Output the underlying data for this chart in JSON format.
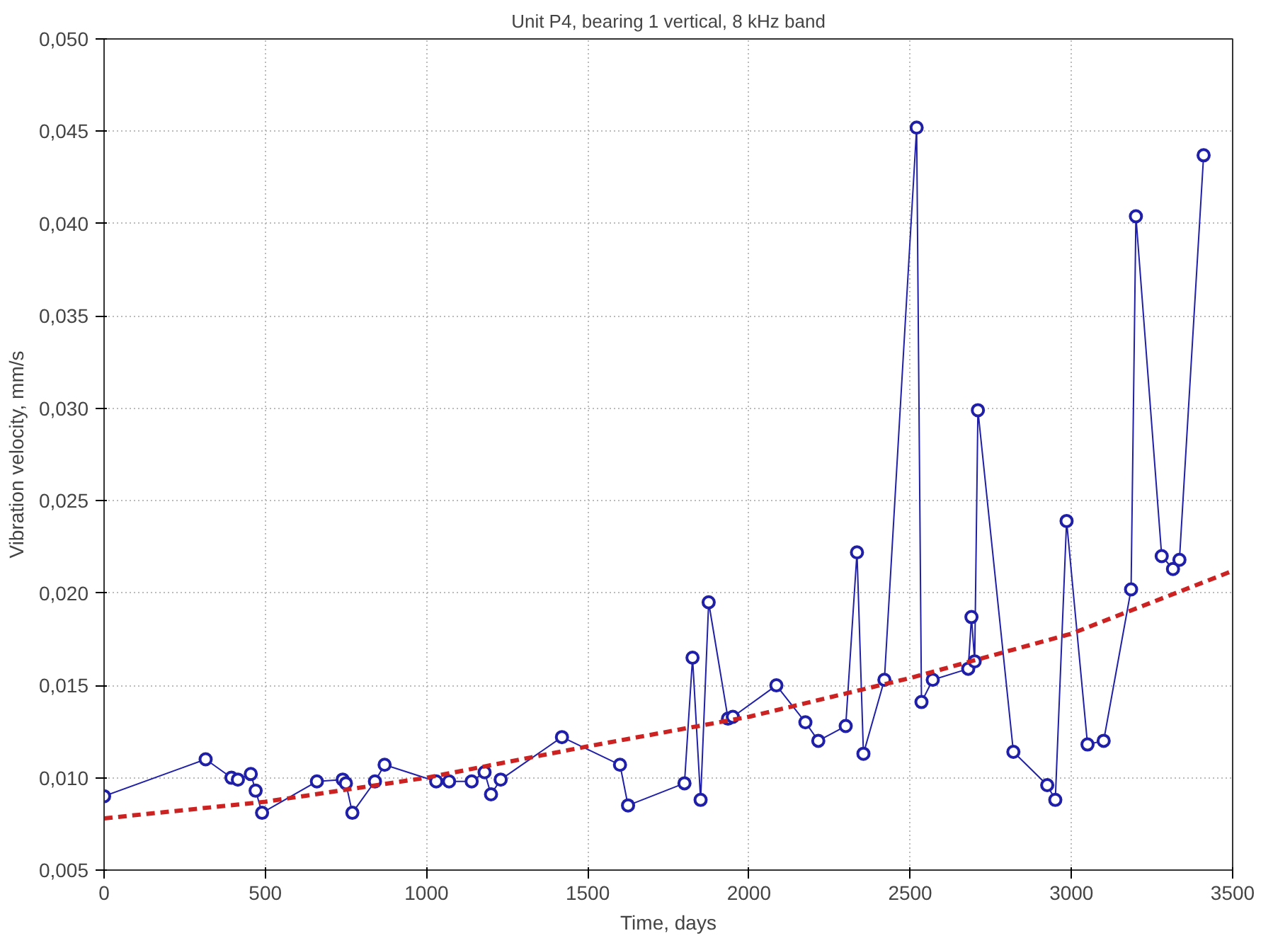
{
  "chart_data": {
    "type": "line",
    "title": "Unit P4, bearing 1 vertical, 8 kHz band",
    "xlabel": "Time, days",
    "ylabel": "Vibration velocity, mm/s",
    "xlim": [
      0,
      3500
    ],
    "xticks": [
      0,
      500,
      1000,
      1500,
      2000,
      2500,
      3000,
      3500
    ],
    "ylim": [
      0.005,
      0.05
    ],
    "yticks": [
      {
        "value": 0.005,
        "label": "0,005"
      },
      {
        "value": 0.01,
        "label": "0,010"
      },
      {
        "value": 0.015,
        "label": "0,015"
      },
      {
        "value": 0.02,
        "label": "0,020"
      },
      {
        "value": 0.025,
        "label": "0,025"
      },
      {
        "value": 0.03,
        "label": "0,030"
      },
      {
        "value": 0.035,
        "label": "0,035"
      },
      {
        "value": 0.04,
        "label": "0,040"
      },
      {
        "value": 0.045,
        "label": "0,045"
      },
      {
        "value": 0.05,
        "label": "0,050"
      }
    ],
    "grid": true,
    "series": [
      {
        "color": "#1f1fa8",
        "marker": "circle",
        "line_style": "solid",
        "x": [
          0,
          315,
          395,
          415,
          455,
          470,
          490,
          660,
          740,
          750,
          770,
          840,
          870,
          1030,
          1070,
          1140,
          1180,
          1200,
          1230,
          1420,
          1600,
          1625,
          1800,
          1825,
          1850,
          1875,
          1935,
          1950,
          2085,
          2175,
          2215,
          2300,
          2335,
          2355,
          2420,
          2520,
          2535,
          2570,
          2680,
          2690,
          2700,
          2710,
          2820,
          2925,
          2950,
          2985,
          3050,
          3100,
          3185,
          3200,
          3280,
          3315,
          3335,
          3410
        ],
        "values": [
          0.009,
          0.011,
          0.01,
          0.0099,
          0.0102,
          0.0093,
          0.0081,
          0.0098,
          0.0099,
          0.0097,
          0.0081,
          0.0098,
          0.0107,
          0.0098,
          0.0098,
          0.0098,
          0.0103,
          0.0091,
          0.0099,
          0.0122,
          0.0107,
          0.0085,
          0.0097,
          0.0165,
          0.0088,
          0.0195,
          0.0132,
          0.0133,
          0.015,
          0.013,
          0.012,
          0.0128,
          0.0222,
          0.0113,
          0.0153,
          0.0452,
          0.0141,
          0.0153,
          0.0159,
          0.0187,
          0.0163,
          0.0299,
          0.0114,
          0.0096,
          0.0088,
          0.0239,
          0.0118,
          0.012,
          0.0202,
          0.0404,
          0.022,
          0.0213,
          0.0218,
          0.0437
        ]
      },
      {
        "color": "#cc2222",
        "marker": "none",
        "line_style": "dashed",
        "x": [
          0,
          500,
          1000,
          1500,
          2000,
          2500,
          3000,
          3500
        ],
        "values": [
          0.0078,
          0.0087,
          0.01,
          0.0117,
          0.0133,
          0.0154,
          0.0178,
          0.0212
        ]
      }
    ]
  }
}
